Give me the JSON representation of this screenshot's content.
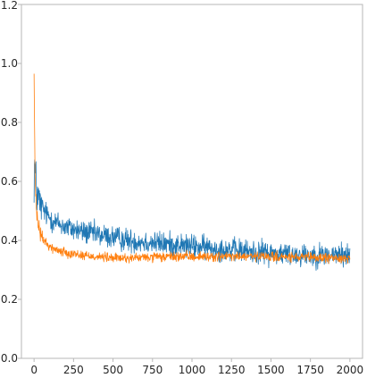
{
  "chart_data": {
    "type": "line",
    "title": "",
    "xlabel": "",
    "ylabel": "",
    "xlim": [
      -80,
      2080
    ],
    "ylim": [
      0,
      1.2
    ],
    "xticks": [
      0,
      250,
      500,
      750,
      1000,
      1250,
      1500,
      1750,
      2000
    ],
    "yticks": [
      0.0,
      0.2,
      0.4,
      0.6,
      0.8,
      1.0,
      1.2
    ],
    "xtick_labels": [
      "0",
      "250",
      "500",
      "750",
      "1000",
      "1250",
      "1500",
      "1750",
      "2000"
    ],
    "ytick_labels": [
      "0.0",
      "0.2",
      "0.4",
      "0.6",
      "0.8",
      "1.0",
      "1.2"
    ],
    "grid": false,
    "legend": "none",
    "series": [
      {
        "color": "#1f77b4",
        "noise": 0.02,
        "x": [
          0,
          5,
          10,
          20,
          40,
          75,
          125,
          200,
          300,
          400,
          500,
          600,
          700,
          800,
          900,
          1000,
          1100,
          1200,
          1300,
          1400,
          1500,
          1600,
          1700,
          1800,
          1900,
          2000
        ],
        "values": [
          0.62,
          0.67,
          0.6,
          0.56,
          0.52,
          0.49,
          0.465,
          0.445,
          0.43,
          0.42,
          0.41,
          0.4,
          0.395,
          0.39,
          0.385,
          0.38,
          0.375,
          0.37,
          0.365,
          0.36,
          0.357,
          0.354,
          0.352,
          0.35,
          0.35,
          0.35
        ]
      },
      {
        "color": "#ff7f0e",
        "noise": 0.008,
        "x": [
          0,
          3,
          6,
          10,
          20,
          40,
          75,
          125,
          200,
          300,
          400,
          500,
          600,
          700,
          800,
          900,
          1000,
          1100,
          1200,
          1300,
          1400,
          1500,
          1600,
          1700,
          1800,
          1900,
          2000
        ],
        "values": [
          0.97,
          0.8,
          0.62,
          0.54,
          0.47,
          0.42,
          0.39,
          0.37,
          0.36,
          0.35,
          0.345,
          0.34,
          0.34,
          0.342,
          0.343,
          0.345,
          0.345,
          0.345,
          0.345,
          0.345,
          0.345,
          0.344,
          0.343,
          0.342,
          0.341,
          0.34,
          0.34
        ]
      }
    ]
  }
}
